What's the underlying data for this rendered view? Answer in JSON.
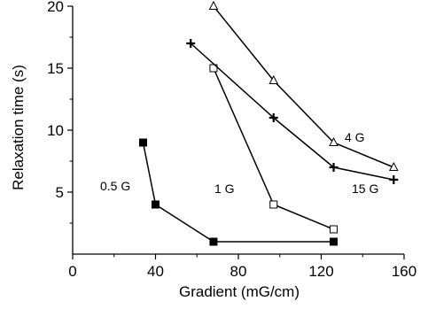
{
  "chart_data": {
    "type": "line",
    "xlabel": "Gradient (mG/cm)",
    "ylabel": "Relaxation time (s)",
    "xlim": [
      0,
      160
    ],
    "ylim": [
      0,
      20
    ],
    "xticks": [
      0,
      40,
      80,
      120,
      160
    ],
    "xtick_labels": [
      "0",
      "40",
      "80",
      "120",
      "160"
    ],
    "yticks": [
      5,
      10,
      15,
      20
    ],
    "ytick_labels": [
      "5",
      "10",
      "15",
      "20"
    ],
    "grid": false,
    "series": [
      {
        "name": "0.5 G",
        "marker": "filled-square",
        "x": [
          34,
          40,
          68,
          126
        ],
        "y": [
          9,
          4,
          1,
          1
        ]
      },
      {
        "name": "1 G",
        "marker": "open-square",
        "x": [
          68,
          97,
          126
        ],
        "y": [
          15,
          4,
          2
        ]
      },
      {
        "name": "4 G",
        "marker": "open-triangle",
        "x": [
          68,
          97,
          126,
          155
        ],
        "y": [
          20,
          14,
          9,
          7
        ]
      },
      {
        "name": "15 G",
        "marker": "plus",
        "x": [
          57,
          97,
          126,
          155
        ],
        "y": [
          17,
          11,
          7,
          6
        ]
      }
    ]
  }
}
